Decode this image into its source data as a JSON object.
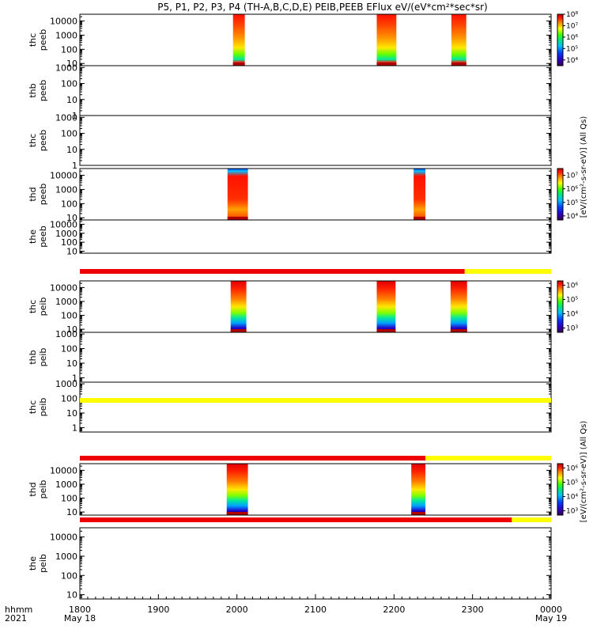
{
  "title": "P5, P1, P2, P3, P4 (TH-A,B,C,D,E) PEIB,PEEB EFlux eV/(eV*cm²*sec*sr)",
  "xaxis": {
    "row1_labels": [
      "1800",
      "1900",
      "2000",
      "2100",
      "2200",
      "2300",
      "0000"
    ],
    "row2_labels": [
      "May 18",
      "May 19"
    ],
    "left_row1": "hhmm",
    "left_row2": "2021"
  },
  "colorbar_units": {
    "top": "[eV/(cm²-s-sr-eV)] (All Qs)",
    "bottom": "[eV/(cm²-s-sr-eV)] (All Qs)"
  },
  "colors": {
    "flag_red": "#ee0000",
    "flag_yellow": "#ffff00",
    "colormap": [
      "#3a0050",
      "#2a00c8",
      "#0040ff",
      "#00c0ff",
      "#00e880",
      "#40ff00",
      "#ffff00",
      "#ff9000",
      "#ff1800",
      "#c00000"
    ]
  },
  "chart_data": {
    "type": "heatmap",
    "x_range": [
      "1800",
      "0000"
    ],
    "y_scale": "log",
    "panels": [
      {
        "probe": "thc",
        "species": "peeb",
        "yticks": [
          "10",
          "100",
          "1000",
          "10000"
        ],
        "ylim": [
          7,
          30000
        ],
        "blocks": [
          [
            1995,
            2010
          ],
          [
            2178,
            2203
          ],
          [
            2273,
            2292
          ]
        ],
        "colorbar": {
          "ticks": [
            "10⁴",
            "10⁵",
            "10⁶",
            "10⁷",
            "10⁸"
          ],
          "range": [
            3.5,
            8
          ]
        }
      },
      {
        "probe": "thb",
        "species": "peeb",
        "yticks": [
          "1",
          "10",
          "100",
          "1000"
        ],
        "ylim": [
          1,
          1300
        ],
        "blocks": []
      },
      {
        "probe": "thc",
        "species": "peeb",
        "yticks": [
          "1",
          "10",
          "100",
          "1000"
        ],
        "ylim": [
          1,
          1300
        ],
        "blocks": []
      },
      {
        "probe": "thd",
        "species": "peeb",
        "yticks": [
          "10",
          "100",
          "1000",
          "10000"
        ],
        "ylim": [
          7,
          30000
        ],
        "blocks": [
          [
            1988,
            2014
          ],
          [
            2225,
            2240
          ]
        ],
        "colorbar": {
          "ticks": [
            "10⁴",
            "10⁵",
            "10⁶",
            "10⁷"
          ],
          "range": [
            3.7,
            7.5
          ]
        }
      },
      {
        "probe": "the",
        "species": "peeb",
        "yticks": [
          "10",
          "100",
          "1000",
          "10000"
        ],
        "ylim": [
          6,
          30000
        ],
        "blocks": []
      },
      {
        "probe": "thc",
        "species": "peib",
        "yticks": [
          "10",
          "100",
          "1000",
          "10000"
        ],
        "ylim": [
          6,
          30000
        ],
        "blocks": [
          [
            1992,
            2012
          ],
          [
            2178,
            2202
          ],
          [
            2272,
            2293
          ]
        ],
        "colorbar": {
          "ticks": [
            "10³",
            "10⁴",
            "10⁵",
            "10⁶"
          ],
          "range": [
            2.7,
            6.3
          ]
        }
      },
      {
        "probe": "thb",
        "species": "peib",
        "yticks": [
          "1",
          "10",
          "100",
          "1000"
        ],
        "ylim": [
          0.5,
          1300
        ],
        "blocks": []
      },
      {
        "probe": "thc",
        "species": "peib",
        "yticks": [
          "1",
          "10",
          "100",
          "1000"
        ],
        "ylim": [
          0.5,
          1300
        ],
        "blocks": []
      },
      {
        "probe": "thd",
        "species": "peib",
        "yticks": [
          "10",
          "100",
          "1000",
          "10000"
        ],
        "ylim": [
          6,
          30000
        ],
        "blocks": [
          [
            1987,
            2014
          ],
          [
            2222,
            2240
          ]
        ],
        "colorbar": {
          "ticks": [
            "10³",
            "10⁴",
            "10⁵",
            "10⁶"
          ],
          "range": [
            2.7,
            6.3
          ]
        }
      },
      {
        "probe": "the",
        "species": "peib",
        "yticks": [
          "10",
          "100",
          "1000",
          "10000"
        ],
        "ylim": [
          6,
          30000
        ],
        "blocks": []
      }
    ],
    "flag_bars": [
      {
        "after_panel": 5,
        "segments": [
          {
            "from": 1800,
            "to": 2290,
            "color": "red"
          },
          {
            "from": 2290,
            "to": 2400,
            "color": "yellow"
          }
        ]
      },
      {
        "after_panel": 7,
        "segments": [
          {
            "from": 1800,
            "to": 2400,
            "color": "yellow"
          }
        ]
      },
      {
        "after_panel": 8,
        "segments": [
          {
            "from": 1800,
            "to": 2240,
            "color": "red"
          },
          {
            "from": 2240,
            "to": 2400,
            "color": "yellow"
          }
        ]
      },
      {
        "after_panel": 9,
        "segments": [
          {
            "from": 1800,
            "to": 2350,
            "color": "red"
          },
          {
            "from": 2350,
            "to": 2400,
            "color": "yellow"
          }
        ]
      }
    ]
  }
}
